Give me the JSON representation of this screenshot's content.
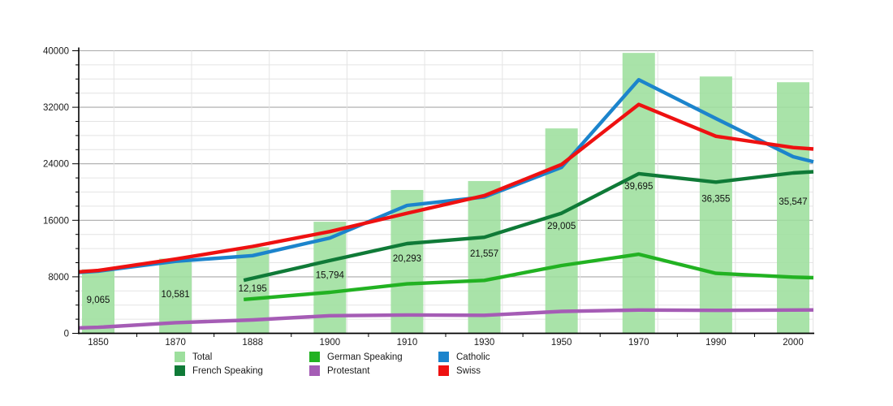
{
  "chart_data": {
    "type": "combo-bar-line",
    "title": "",
    "categories": [
      "1850",
      "1870",
      "1888",
      "1900",
      "1910",
      "1930",
      "1950",
      "1970",
      "1990",
      "2000"
    ],
    "y_axis": {
      "min": 0,
      "max": 40000,
      "major_tick_step": 8000,
      "minor_tick_step": 2000,
      "tick_labels": [
        "0",
        "8000",
        "16000",
        "24000",
        "32000",
        "40000"
      ]
    },
    "grid": {
      "major_color": "#aaaaaa",
      "minor_color": "#e4e4e4",
      "vertical_color": "#e4e4e4",
      "axis_color": "#000000"
    },
    "bars": {
      "name": "Total",
      "color": "#9ddf9d",
      "values": [
        9065,
        10581,
        12195,
        15794,
        20293,
        21557,
        29005,
        39695,
        36355,
        35547
      ],
      "labels": [
        "9,065",
        "10,581",
        "12,195",
        "15,794",
        "20,293",
        "21,557",
        "29,005",
        "39,695",
        "36,355",
        "35,547"
      ],
      "label_color": "#111111"
    },
    "lines": [
      {
        "name": "German Speaking",
        "color": "#22b222",
        "values": [
          null,
          null,
          4900,
          5800,
          7000,
          7500,
          9600,
          11200,
          8500,
          7950
        ]
      },
      {
        "name": "French Speaking",
        "color": "#0f7a37",
        "values": [
          null,
          null,
          7800,
          10300,
          12700,
          13600,
          17000,
          22600,
          21400,
          22700
        ]
      },
      {
        "name": "Catholic",
        "color": "#1c84cc",
        "values": [
          8800,
          10200,
          11000,
          13500,
          18100,
          19300,
          23500,
          35900,
          30400,
          25000
        ]
      },
      {
        "name": "Protestant",
        "color": "#a55cb5",
        "values": [
          850,
          1500,
          1900,
          2500,
          2600,
          2550,
          3100,
          3300,
          3250,
          3300
        ]
      },
      {
        "name": "Swiss",
        "color": "#ee1111",
        "values": [
          8900,
          10500,
          12300,
          14400,
          17000,
          19500,
          23900,
          32400,
          27900,
          26300
        ]
      }
    ],
    "legend_position": "bottom"
  },
  "legend": {
    "items": [
      {
        "label": "Total",
        "color": "#9ddf9d"
      },
      {
        "label": "German Speaking",
        "color": "#22b222"
      },
      {
        "label": "Catholic",
        "color": "#1c84cc"
      },
      {
        "label": "French Speaking",
        "color": "#0f7a37"
      },
      {
        "label": "Protestant",
        "color": "#a55cb5"
      },
      {
        "label": "Swiss",
        "color": "#ee1111"
      }
    ]
  }
}
